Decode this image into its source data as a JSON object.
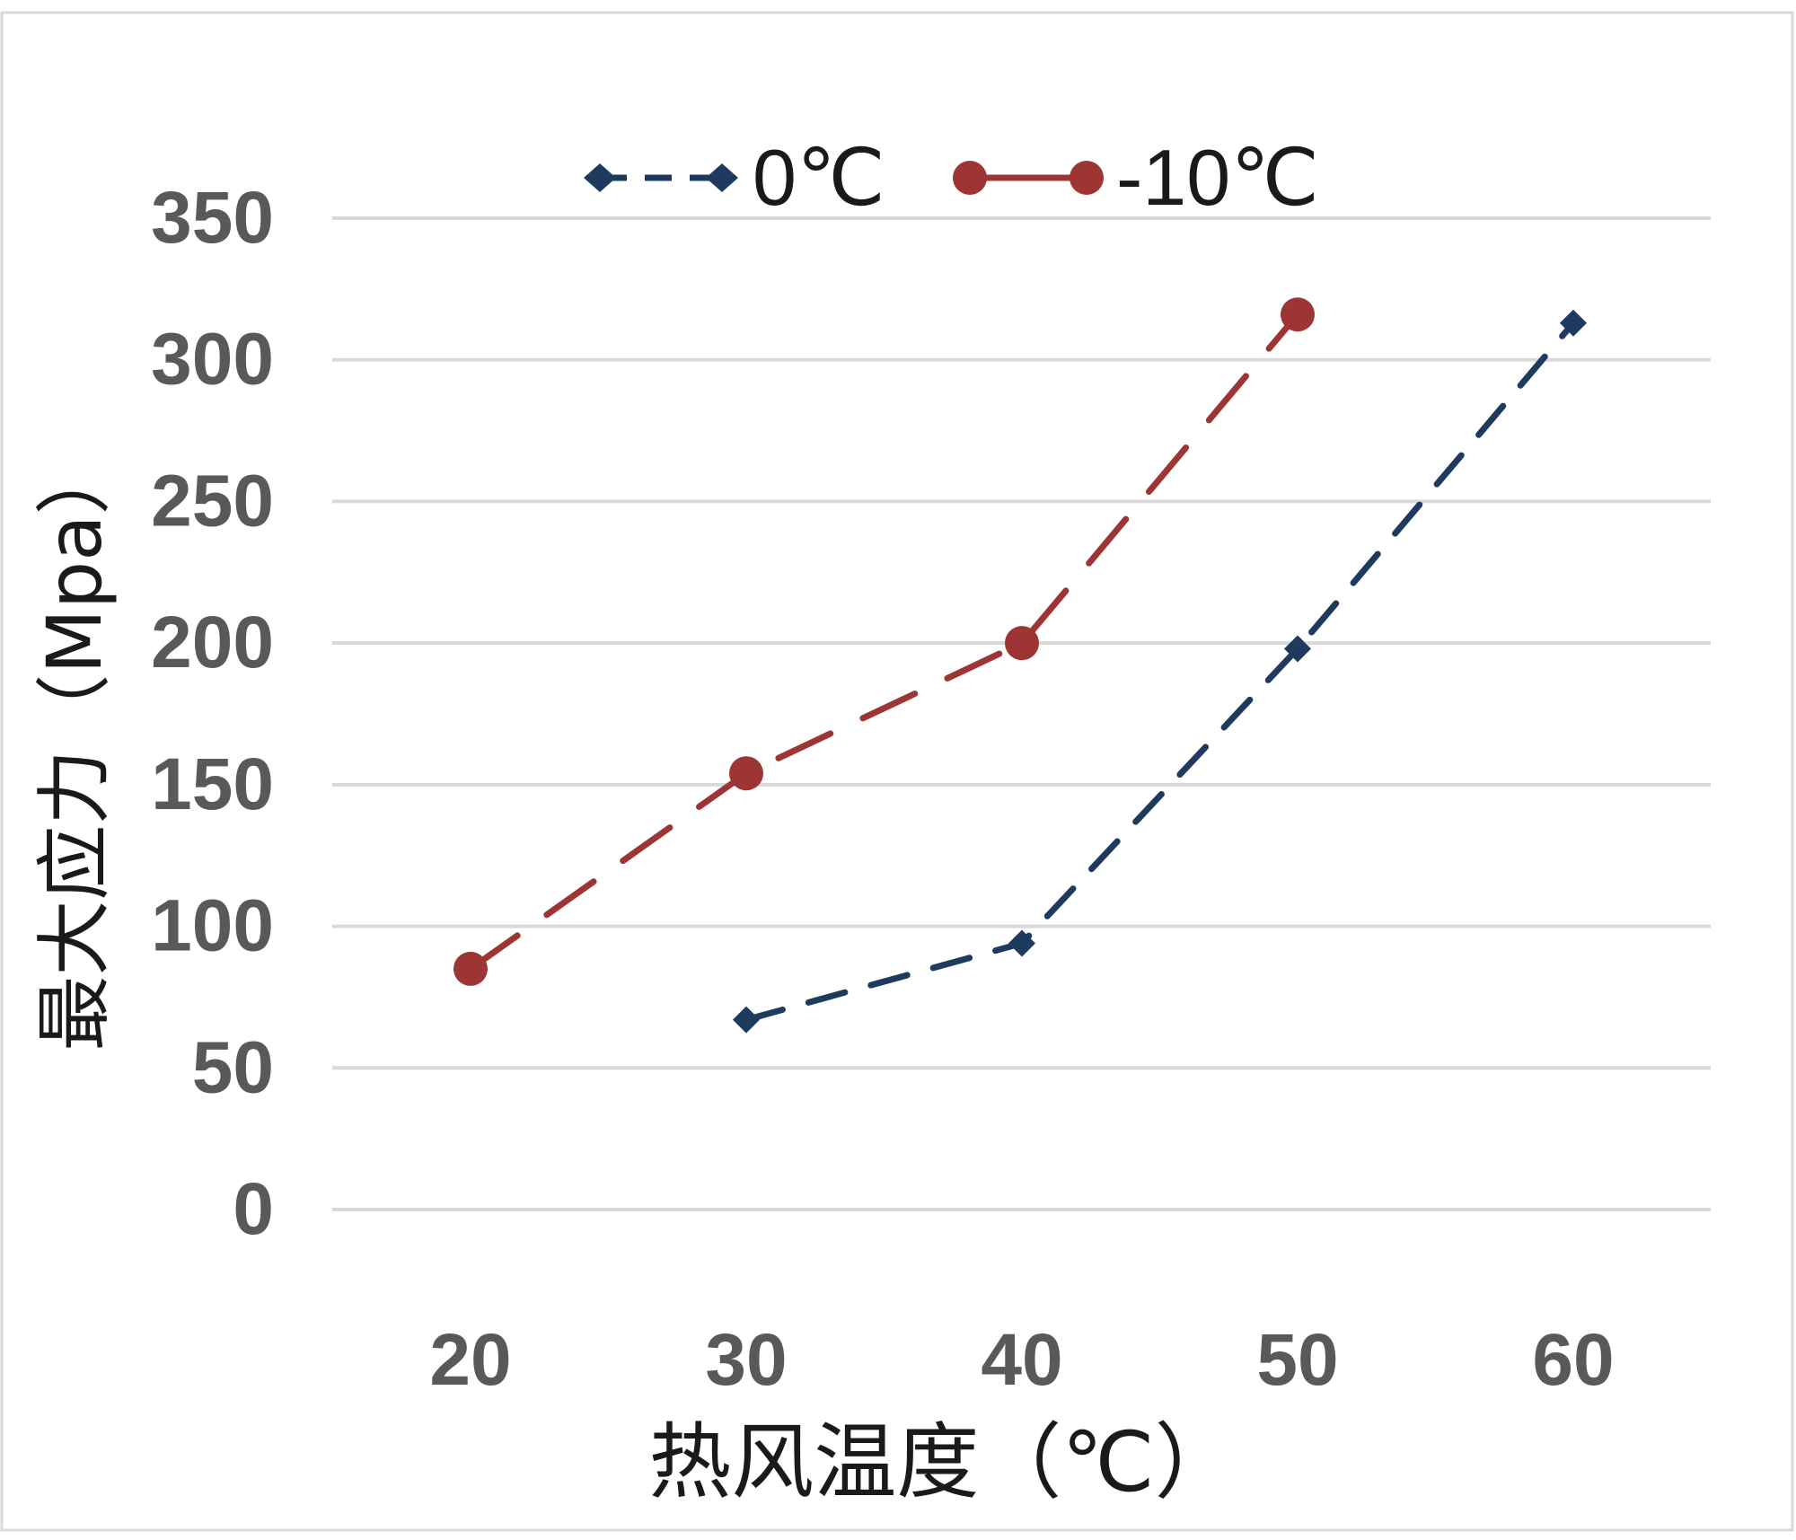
{
  "chart_data": {
    "type": "line",
    "title": "",
    "xlabel": "热风温度（℃）",
    "ylabel": "最大应力（Mpa）",
    "x": [
      20,
      30,
      40,
      50,
      60
    ],
    "x_ticks": [
      "20",
      "30",
      "40",
      "50",
      "60"
    ],
    "y_ticks": [
      "0",
      "50",
      "100",
      "150",
      "200",
      "250",
      "300",
      "350"
    ],
    "ylim": [
      0,
      350
    ],
    "grid": true,
    "legend_position": "top",
    "series": [
      {
        "name": "0℃",
        "color": "#1f3a5f",
        "line_style": "dashed",
        "marker": "diamond",
        "points": [
          [
            30,
            67
          ],
          [
            40,
            94
          ],
          [
            50,
            198
          ],
          [
            60,
            313
          ]
        ]
      },
      {
        "name": "-10℃",
        "color": "#9e3535",
        "line_style": "dashed",
        "marker": "circle",
        "points": [
          [
            20,
            85
          ],
          [
            30,
            154
          ],
          [
            40,
            200
          ],
          [
            50,
            316
          ]
        ]
      }
    ]
  }
}
